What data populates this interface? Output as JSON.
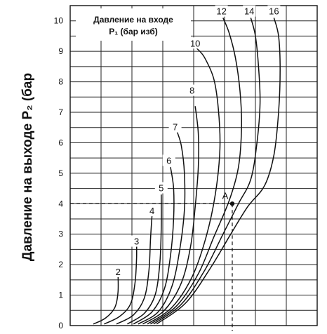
{
  "chart_data": {
    "type": "line",
    "title": "",
    "xlabel": "",
    "ylabel": "Давление на выходе P₂ (бар",
    "ylim": [
      0,
      10.5
    ],
    "xlim": [
      0,
      8
    ],
    "grid": true,
    "y_ticks": [
      "0",
      "1",
      "2",
      "3",
      "4",
      "5",
      "6",
      "7",
      "8",
      "9",
      "10"
    ],
    "legend": {
      "line1": "Давление на входе",
      "line2": "P₁ (бар изб)",
      "position": "top-left"
    },
    "series": [
      {
        "name": "2",
        "label_at": [
          1.55,
          1.75
        ],
        "points": [
          [
            0.75,
            0.05
          ],
          [
            1.15,
            0.25
          ],
          [
            1.45,
            0.6
          ],
          [
            1.55,
            1.1
          ],
          [
            1.55,
            1.7
          ]
        ]
      },
      {
        "name": "3",
        "label_at": [
          2.15,
          2.75
        ],
        "points": [
          [
            1.1,
            0.05
          ],
          [
            1.6,
            0.3
          ],
          [
            1.95,
            0.7
          ],
          [
            2.1,
            1.4
          ],
          [
            2.15,
            2.2
          ],
          [
            2.15,
            2.8
          ]
        ]
      },
      {
        "name": "4",
        "label_at": [
          2.65,
          3.75
        ],
        "points": [
          [
            1.5,
            0.05
          ],
          [
            2.05,
            0.35
          ],
          [
            2.4,
            0.9
          ],
          [
            2.55,
            1.8
          ],
          [
            2.6,
            2.8
          ],
          [
            2.65,
            3.6
          ]
        ]
      },
      {
        "name": "5",
        "label_at": [
          2.95,
          4.5
        ],
        "points": [
          [
            1.85,
            0.05
          ],
          [
            2.4,
            0.4
          ],
          [
            2.75,
            1.0
          ],
          [
            2.9,
            2.0
          ],
          [
            2.95,
            3.2
          ],
          [
            2.95,
            4.3
          ]
        ]
      },
      {
        "name": "6",
        "label_at": [
          3.2,
          5.4
        ],
        "points": [
          [
            2.05,
            0.05
          ],
          [
            2.65,
            0.45
          ],
          [
            3.05,
            1.2
          ],
          [
            3.25,
            2.3
          ],
          [
            3.35,
            3.5
          ],
          [
            3.35,
            4.5
          ],
          [
            3.25,
            5.2
          ]
        ]
      },
      {
        "name": "7",
        "label_at": [
          3.4,
          6.5
        ],
        "points": [
          [
            2.2,
            0.05
          ],
          [
            2.85,
            0.45
          ],
          [
            3.3,
            1.3
          ],
          [
            3.55,
            2.5
          ],
          [
            3.7,
            3.8
          ],
          [
            3.7,
            5.0
          ],
          [
            3.6,
            5.9
          ],
          [
            3.45,
            6.4
          ]
        ]
      },
      {
        "name": "8",
        "label_at": [
          3.95,
          7.7
        ],
        "points": [
          [
            2.35,
            0.05
          ],
          [
            3.05,
            0.5
          ],
          [
            3.6,
            1.4
          ],
          [
            3.9,
            2.6
          ],
          [
            4.05,
            3.9
          ],
          [
            4.15,
            5.2
          ],
          [
            4.15,
            6.3
          ],
          [
            4.05,
            7.2
          ]
        ]
      },
      {
        "name": "10",
        "label_at": [
          4.05,
          9.25
        ],
        "points": [
          [
            2.5,
            0.05
          ],
          [
            3.3,
            0.6
          ],
          [
            3.95,
            1.6
          ],
          [
            4.4,
            2.9
          ],
          [
            4.7,
            4.3
          ],
          [
            4.85,
            5.8
          ],
          [
            4.8,
            7.1
          ],
          [
            4.65,
            8.1
          ],
          [
            4.35,
            8.8
          ],
          [
            4.1,
            9.1
          ]
        ]
      },
      {
        "name": "12",
        "label_at": [
          4.9,
          10.3
        ],
        "points": [
          [
            2.6,
            0.05
          ],
          [
            3.45,
            0.65
          ],
          [
            4.15,
            1.7
          ],
          [
            4.65,
            2.9
          ],
          [
            5.15,
            4.1
          ],
          [
            5.45,
            5.2
          ],
          [
            5.55,
            6.5
          ],
          [
            5.5,
            7.7
          ],
          [
            5.35,
            8.8
          ],
          [
            5.15,
            9.6
          ],
          [
            4.95,
            10.1
          ]
        ]
      },
      {
        "name": "14",
        "label_at": [
          5.8,
          10.3
        ],
        "points": [
          [
            2.7,
            0.05
          ],
          [
            3.6,
            0.7
          ],
          [
            4.35,
            1.8
          ],
          [
            4.95,
            3.0
          ],
          [
            5.45,
            4.0
          ],
          [
            5.85,
            4.8
          ],
          [
            6.05,
            6.0
          ],
          [
            6.15,
            7.3
          ],
          [
            6.1,
            8.5
          ],
          [
            6.0,
            9.5
          ],
          [
            5.85,
            10.1
          ]
        ]
      },
      {
        "name": "16",
        "label_at": [
          6.6,
          10.3
        ],
        "points": [
          [
            2.8,
            0.05
          ],
          [
            3.75,
            0.75
          ],
          [
            4.55,
            1.9
          ],
          [
            5.2,
            3.0
          ],
          [
            5.75,
            3.9
          ],
          [
            6.3,
            4.6
          ],
          [
            6.6,
            5.6
          ],
          [
            6.75,
            7.0
          ],
          [
            6.8,
            8.4
          ],
          [
            6.75,
            9.5
          ],
          [
            6.6,
            10.1
          ]
        ]
      }
    ],
    "annotations": [
      {
        "label": "A",
        "x": 5.25,
        "y": 4.0,
        "dashed_to_axes": true
      }
    ]
  }
}
